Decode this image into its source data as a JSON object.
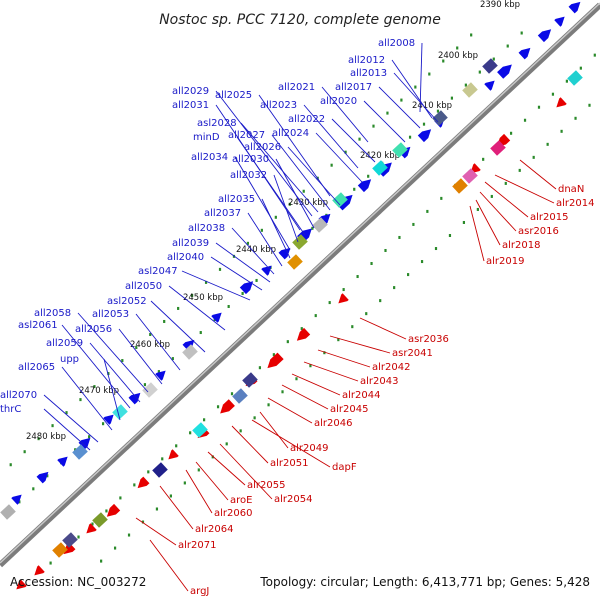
{
  "title": "Nostoc sp. PCC 7120, complete genome",
  "footer": {
    "accession": "Accession: NC_003272",
    "summary": "Topology: circular; Length: 6,413,771 bp; Genes: 5,428"
  },
  "colors": {
    "backbone": "#8a8a8a",
    "tick": "#2a8a2a",
    "forward_gene": "#0a0ae6",
    "reverse_gene": "#e60000",
    "top_label": "#1a1ac8",
    "bottom_label": "#c80000"
  },
  "kbp_markers": [
    "2390 kbp",
    "2400 kbp",
    "2410 kbp",
    "2420 kbp",
    "2430 kbp",
    "2440 kbp",
    "2450 kbp",
    "2460 kbp",
    "2470 kbp",
    "2480 kbp"
  ],
  "top_labels": [
    "all2008",
    "all2012",
    "all2013",
    "all2017",
    "all2020",
    "all2021",
    "all2022",
    "all2023",
    "all2024",
    "all2025",
    "all2026",
    "all2027",
    "asl2028",
    "all2029",
    "all2030",
    "all2031",
    "mind",
    "all2032",
    "all2034",
    "all2035",
    "all2037",
    "all2038",
    "all2039",
    "all2040",
    "asl2047",
    "all2050",
    "asl2052",
    "all2053",
    "all2056",
    "all2058",
    "all2059",
    "asl2061",
    "upp",
    "all2065",
    "all2070",
    "thrC"
  ],
  "bottom_labels": [
    "dnaN",
    "alr2014",
    "alr2015",
    "asr2016",
    "alr2018",
    "alr2019",
    "asr2036",
    "asr2041",
    "alr2042",
    "alr2043",
    "alr2044",
    "alr2045",
    "alr2046",
    "alr2049",
    "dapF",
    "alr2051",
    "alr2054",
    "alr2055",
    "aroE",
    "alr2060",
    "alr2064",
    "alr2071",
    "argJ"
  ]
}
